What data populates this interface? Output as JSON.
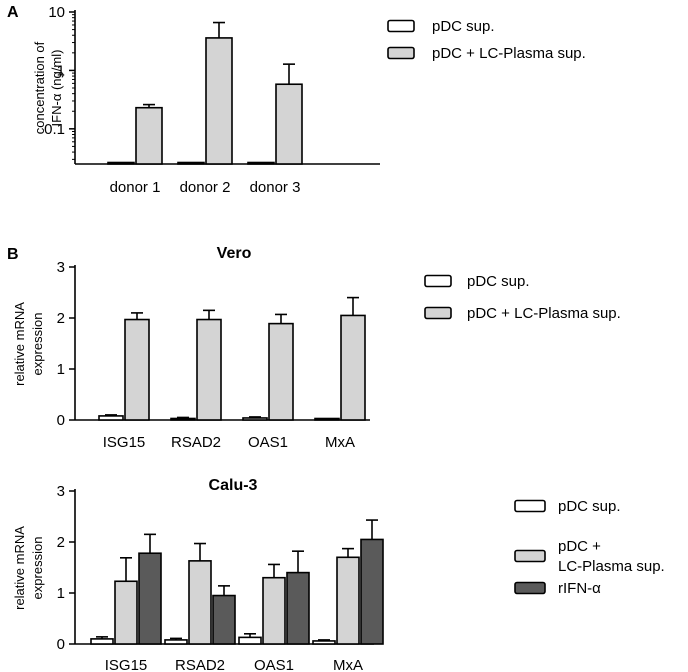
{
  "colors": {
    "white_bar": "#ffffff",
    "light_bar": "#d4d4d4",
    "dark_bar": "#5a5a5a",
    "stroke": "#000000"
  },
  "chart_data": [
    {
      "type": "bar",
      "panel_label": "A",
      "title": "",
      "scale": "log",
      "ylabel_lines": [
        "concentration of",
        "IFN-α (ng/ml)"
      ],
      "ylim": [
        0.025,
        10
      ],
      "yticks": [
        0.1,
        1,
        10
      ],
      "ytick_labels": [
        "0.1",
        "1",
        "10"
      ],
      "categories": [
        "donor 1",
        "donor 2",
        "donor 3"
      ],
      "series": [
        {
          "name": "pDC sup.",
          "values": [
            0.025,
            0.025,
            0.025
          ],
          "errors": [
            0,
            0,
            0
          ],
          "color": "white"
        },
        {
          "name": "pDC + LC-Plasma sup.",
          "values": [
            0.23,
            3.6,
            0.58
          ],
          "errors": [
            0.26,
            6.6,
            1.28
          ],
          "color": "light"
        }
      ],
      "legend_lines": [
        [
          "pDC sup."
        ],
        [
          "pDC + LC-Plasma sup."
        ]
      ]
    },
    {
      "type": "bar",
      "panel_label": "B",
      "title": "Vero",
      "scale": "linear",
      "ylabel_lines": [
        "relative mRNA",
        "expression"
      ],
      "ylim": [
        0,
        3
      ],
      "yticks": [
        0,
        1,
        2,
        3
      ],
      "ytick_labels": [
        "0",
        "1",
        "2",
        "3"
      ],
      "categories": [
        "ISG15",
        "RSAD2",
        "OAS1",
        "MxA"
      ],
      "series": [
        {
          "name": "pDC sup.",
          "values": [
            0.08,
            0.03,
            0.04,
            0.01
          ],
          "errors": [
            0.1,
            0.05,
            0.06,
            0.01
          ],
          "color": "white"
        },
        {
          "name": "pDC + LC-Plasma sup.",
          "values": [
            1.97,
            1.97,
            1.89,
            2.05
          ],
          "errors": [
            2.1,
            2.15,
            2.07,
            2.4
          ],
          "color": "light"
        }
      ],
      "legend_lines": [
        [
          "pDC sup."
        ],
        [
          "pDC + LC-Plasma sup."
        ]
      ]
    },
    {
      "type": "bar",
      "panel_label": "",
      "title": "Calu-3",
      "scale": "linear",
      "ylabel_lines": [
        "relative mRNA",
        "expression"
      ],
      "ylim": [
        0,
        3
      ],
      "yticks": [
        0,
        1,
        2,
        3
      ],
      "ytick_labels": [
        "0",
        "1",
        "2",
        "3"
      ],
      "categories": [
        "ISG15",
        "RSAD2",
        "OAS1",
        "MxA"
      ],
      "series": [
        {
          "name": "pDC sup.",
          "values": [
            0.1,
            0.08,
            0.13,
            0.06
          ],
          "errors": [
            0.14,
            0.11,
            0.2,
            0.08
          ],
          "color": "white"
        },
        {
          "name": "pDC + LC-Plasma sup.",
          "values": [
            1.23,
            1.63,
            1.3,
            1.7
          ],
          "errors": [
            1.69,
            1.97,
            1.56,
            1.87
          ],
          "color": "light"
        },
        {
          "name": "rIFN-α",
          "values": [
            1.78,
            0.95,
            1.4,
            2.05
          ],
          "errors": [
            2.15,
            1.14,
            1.82,
            2.43
          ],
          "color": "dark"
        }
      ],
      "legend_lines": [
        [
          "pDC sup."
        ],
        [
          "pDC +",
          "LC-Plasma sup."
        ],
        [
          "rIFN-α"
        ]
      ]
    }
  ]
}
